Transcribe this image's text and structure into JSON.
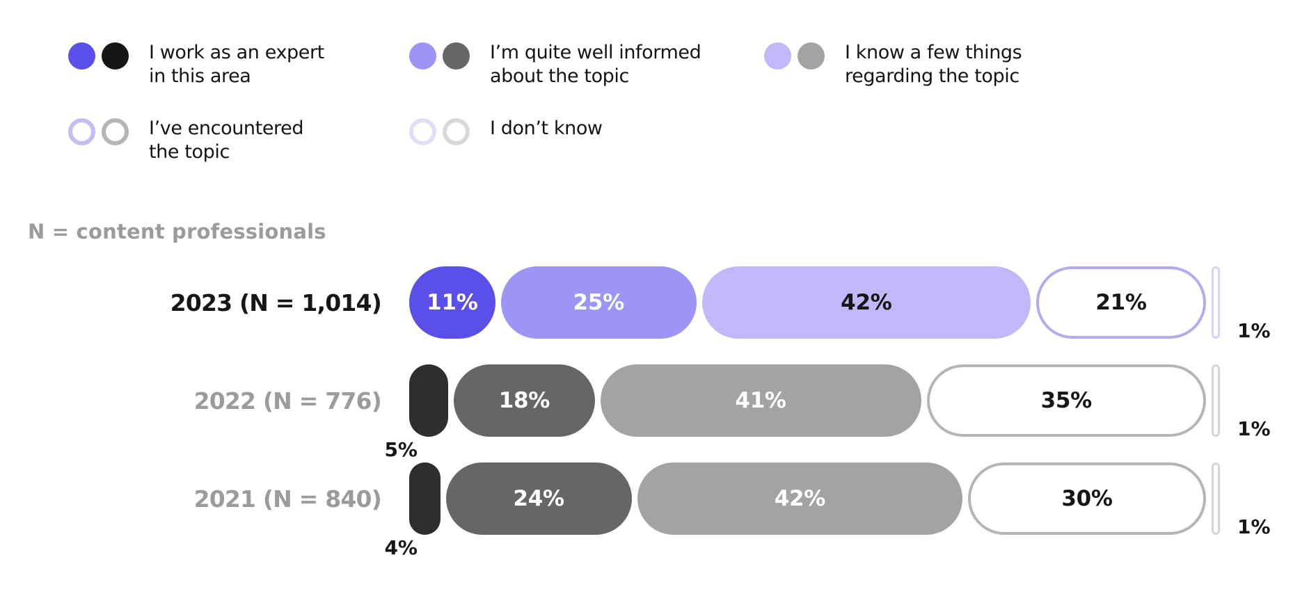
{
  "note": "N = content professionals",
  "legend": {
    "items": [
      {
        "label": "I work as an expert in this area",
        "purple": "#5a4fe8",
        "gray": "#161616",
        "style": "filled"
      },
      {
        "label": "I’m quite well informed about the topic",
        "purple": "#9d94f5",
        "gray": "#666666",
        "style": "filled"
      },
      {
        "label": "I know a few things regarding the topic",
        "purple": "#c0b8f8",
        "gray": "#a3a3a3",
        "style": "filled"
      },
      {
        "label": "I’ve encountered the topic",
        "purple": "#c4bdf2",
        "gray": "#b5b5b5",
        "style": "outlined"
      },
      {
        "label": "I don’t know",
        "purple": "#e2def8",
        "gray": "#d8d8d8",
        "style": "outlined"
      }
    ]
  },
  "chart_data": {
    "type": "bar",
    "variant": "horizontal-stacked-100-percent-pills",
    "unit": "%",
    "xlim": [
      0,
      100
    ],
    "population_note": "N = content professionals",
    "categories": [
      "I work as an expert in this area",
      "I’m quite well informed about the topic",
      "I know a few things regarding the topic",
      "I’ve encountered the topic",
      "I don’t know"
    ],
    "series": [
      {
        "name": "2023 (N = 1,014)",
        "label_color": "#161616",
        "values": [
          11,
          25,
          42,
          21,
          1
        ],
        "segments": [
          {
            "value": 11,
            "label": "11%",
            "fill": "#5a4fe8",
            "text": "#ffffff",
            "placement": "inside"
          },
          {
            "value": 25,
            "label": "25%",
            "fill": "#9d94f5",
            "text": "#ffffff",
            "placement": "inside"
          },
          {
            "value": 42,
            "label": "42%",
            "fill": "#c0b8f8",
            "text": "#161616",
            "placement": "inside"
          },
          {
            "value": 21,
            "label": "21%",
            "fill": "#ffffff",
            "border": "#b3abef",
            "text": "#161616",
            "placement": "inside"
          },
          {
            "value": 1,
            "label": "1%",
            "fill": "#ffffff",
            "border": "#d8d3f6",
            "text": "#161616",
            "placement": "outside-right",
            "thin": true
          }
        ]
      },
      {
        "name": "2022 (N = 776)",
        "label_color": "#9b9b9b",
        "values": [
          5,
          18,
          41,
          35,
          1
        ],
        "segments": [
          {
            "value": 5,
            "label": "5%",
            "fill": "#2e2e2e",
            "text": "#161616",
            "placement": "outside-below"
          },
          {
            "value": 18,
            "label": "18%",
            "fill": "#666666",
            "text": "#ffffff",
            "placement": "inside"
          },
          {
            "value": 41,
            "label": "41%",
            "fill": "#a3a3a3",
            "text": "#ffffff",
            "placement": "inside"
          },
          {
            "value": 35,
            "label": "35%",
            "fill": "#ffffff",
            "border": "#b5b5b5",
            "text": "#161616",
            "placement": "inside"
          },
          {
            "value": 1,
            "label": "1%",
            "fill": "#ffffff",
            "border": "#d4d4d4",
            "text": "#161616",
            "placement": "outside-right",
            "thin": true
          }
        ]
      },
      {
        "name": "2021 (N = 840)",
        "label_color": "#9b9b9b",
        "values": [
          4,
          24,
          42,
          30,
          1
        ],
        "segments": [
          {
            "value": 4,
            "label": "4%",
            "fill": "#2e2e2e",
            "text": "#161616",
            "placement": "outside-below"
          },
          {
            "value": 24,
            "label": "24%",
            "fill": "#666666",
            "text": "#ffffff",
            "placement": "inside"
          },
          {
            "value": 42,
            "label": "42%",
            "fill": "#a3a3a3",
            "text": "#ffffff",
            "placement": "inside"
          },
          {
            "value": 30,
            "label": "30%",
            "fill": "#ffffff",
            "border": "#b5b5b5",
            "text": "#161616",
            "placement": "inside"
          },
          {
            "value": 1,
            "label": "1%",
            "fill": "#ffffff",
            "border": "#d4d4d4",
            "text": "#161616",
            "placement": "outside-right",
            "thin": true
          }
        ]
      }
    ]
  }
}
